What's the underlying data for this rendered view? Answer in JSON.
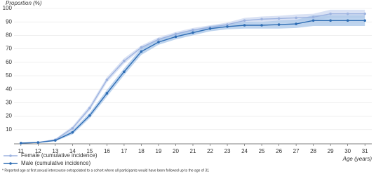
{
  "chart_data": {
    "type": "line",
    "y_label": "Proportion (%)",
    "x_label": "Age (years)",
    "footnote": "* Reported age at first sexual intercourse extrapolated to a cohort where all participants would have been followed up to the age of 31",
    "x": [
      11,
      12,
      13,
      14,
      15,
      16,
      17,
      18,
      19,
      20,
      21,
      22,
      23,
      24,
      25,
      26,
      27,
      28,
      29,
      30,
      31
    ],
    "series": [
      {
        "name": "Female (cumulative incidence)",
        "color": "#9db3e0",
        "band_color": "#cdd8f0",
        "values": [
          0,
          0.5,
          2.5,
          11,
          26,
          47,
          61,
          71,
          77,
          81,
          84,
          86,
          88,
          91,
          92,
          92.5,
          93,
          93.5,
          96,
          96,
          96
        ],
        "lower": [
          0,
          0.3,
          1.8,
          9.5,
          24,
          45,
          59,
          69.5,
          75.5,
          79.5,
          82.5,
          84.5,
          86.5,
          89,
          90,
          90.5,
          90.5,
          91,
          93,
          93,
          93
        ],
        "upper": [
          0,
          0.8,
          3.2,
          12.5,
          28,
          49,
          63,
          72.5,
          78.5,
          82.5,
          85.5,
          87.5,
          89.5,
          93,
          94,
          94.5,
          95.5,
          96,
          99,
          99,
          99
        ]
      },
      {
        "name": "Male (cumulative incidence)",
        "color": "#2e6db4",
        "band_color": "#a8c5e8",
        "values": [
          0,
          0.5,
          2,
          8,
          20.5,
          37,
          53,
          68,
          75,
          79,
          82,
          85,
          86.5,
          87.5,
          87.5,
          88,
          88.5,
          91,
          91,
          91,
          91
        ],
        "lower": [
          0,
          0.3,
          1.4,
          6.5,
          18.5,
          34.5,
          50.5,
          65.5,
          73,
          77,
          80,
          83,
          84.5,
          85,
          85,
          85,
          85.5,
          87,
          87,
          87,
          87
        ],
        "upper": [
          0,
          0.8,
          2.6,
          9.5,
          22.5,
          39.5,
          55.5,
          70.5,
          77,
          81,
          84,
          87,
          88.5,
          90,
          90,
          91,
          91.5,
          95,
          95,
          95,
          95
        ]
      }
    ],
    "xlim": [
      10.6,
      31.4
    ],
    "ylim": [
      0,
      100
    ],
    "xticks": [
      11,
      12,
      13,
      14,
      15,
      16,
      17,
      18,
      19,
      20,
      21,
      22,
      23,
      24,
      25,
      26,
      27,
      28,
      29,
      30,
      31
    ],
    "yticks": [
      10,
      20,
      30,
      40,
      50,
      60,
      70,
      80,
      90,
      100
    ],
    "grid": true
  }
}
